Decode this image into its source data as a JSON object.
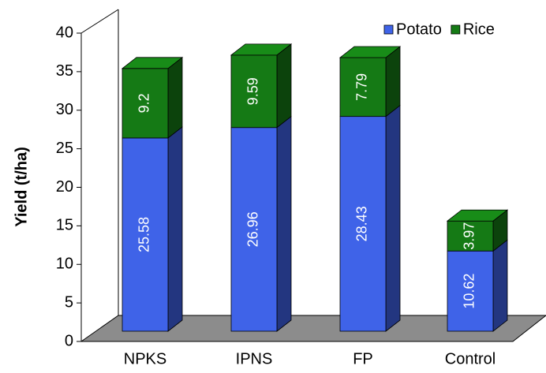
{
  "chart_data": {
    "type": "bar3d_stacked",
    "ylabel": "Yield (t/ha)",
    "categories": [
      "NPKS",
      "IPNS",
      "FP",
      "Control"
    ],
    "series": [
      {
        "name": "Potato",
        "color": "#3f63e8",
        "values": [
          25.58,
          26.96,
          28.43,
          10.62
        ]
      },
      {
        "name": "Rice",
        "color": "#157a15",
        "values": [
          9.2,
          9.59,
          7.79,
          3.97
        ]
      }
    ],
    "ylim": [
      0,
      40
    ],
    "yticks": [
      0,
      5,
      10,
      15,
      20,
      25,
      30,
      35,
      40
    ],
    "legend": "top-right"
  }
}
